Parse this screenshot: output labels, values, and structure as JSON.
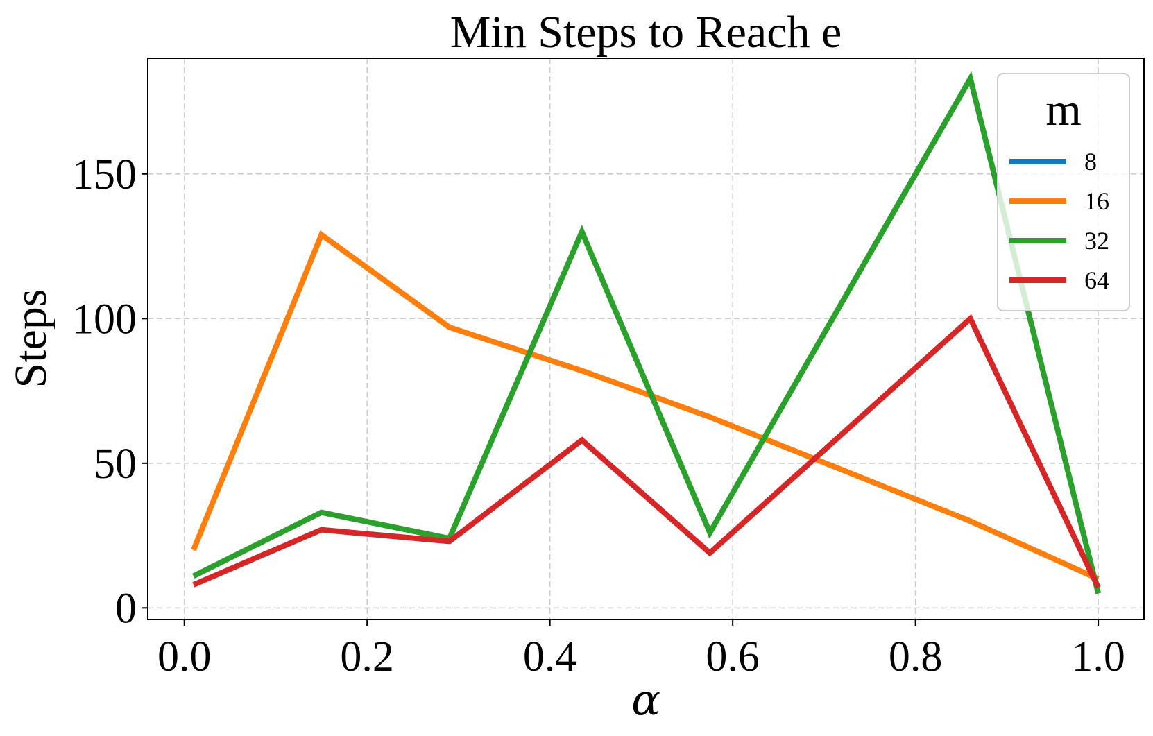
{
  "chart_data": {
    "type": "line",
    "title": "Min Steps to Reach e",
    "xlabel": "α",
    "ylabel": "Steps",
    "xlim": [
      -0.04,
      1.05
    ],
    "ylim": [
      -4,
      190
    ],
    "xticks": [
      0.0,
      0.2,
      0.4,
      0.6,
      0.8,
      1.0
    ],
    "xtick_labels": [
      "0.0",
      "0.2",
      "0.4",
      "0.6",
      "0.8",
      "1.0"
    ],
    "yticks": [
      0,
      50,
      100,
      150
    ],
    "ytick_labels": [
      "0",
      "50",
      "100",
      "150"
    ],
    "grid": true,
    "legend": {
      "title": "m",
      "placement": "top-right"
    },
    "x": [
      0.01,
      0.15,
      0.29,
      0.435,
      0.575,
      0.86,
      1.0
    ],
    "series": [
      {
        "name": "8",
        "color": "#1f77b4",
        "values": [
          null,
          null,
          null,
          null,
          null,
          null,
          null
        ]
      },
      {
        "name": "16",
        "color": "#ff7f0e",
        "values": [
          20,
          129,
          97,
          82,
          66,
          30,
          10
        ]
      },
      {
        "name": "32",
        "color": "#2ca02c",
        "values": [
          11,
          33,
          24,
          130,
          26,
          183,
          5
        ]
      },
      {
        "name": "64",
        "color": "#d62728",
        "values": [
          8,
          27,
          23,
          58,
          19,
          100,
          7
        ]
      }
    ]
  }
}
